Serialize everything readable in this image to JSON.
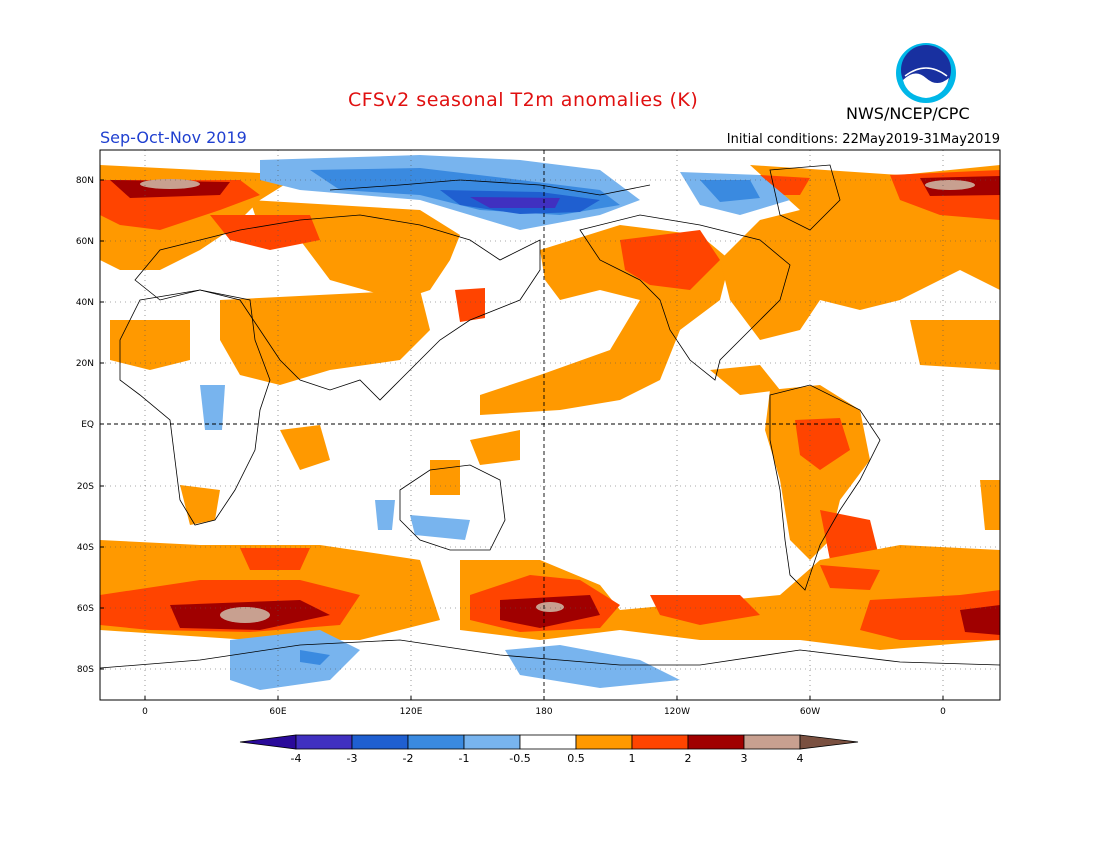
{
  "header": {
    "title": "CFSv2 seasonal T2m anomalies (K)",
    "season": "Sep-Oct-Nov 2019",
    "initial_conditions": "Initial conditions: 22May2019-31May2019",
    "agency": "NWS/NCEP/CPC",
    "logo_text": "NOAA"
  },
  "colors": {
    "title": "#e01010",
    "season": "#2040d0"
  },
  "lat_labels": [
    "80N",
    "60N",
    "40N",
    "20N",
    "EQ",
    "20S",
    "40S",
    "60S",
    "80S"
  ],
  "lon_labels": [
    "0",
    "60E",
    "120E",
    "180",
    "120W",
    "60W",
    "0"
  ],
  "colorbar": {
    "labels": [
      "-4",
      "-3",
      "-2",
      "-1",
      "-0.5",
      "0.5",
      "1",
      "2",
      "3",
      "4"
    ],
    "colors": [
      "#2a0a9a",
      "#4030c0",
      "#1f5fd0",
      "#3a8ae0",
      "#78b4ee",
      "#ffffff",
      "#ff9900",
      "#ff4400",
      "#a00000",
      "#c8a090",
      "#7a5040"
    ]
  }
}
